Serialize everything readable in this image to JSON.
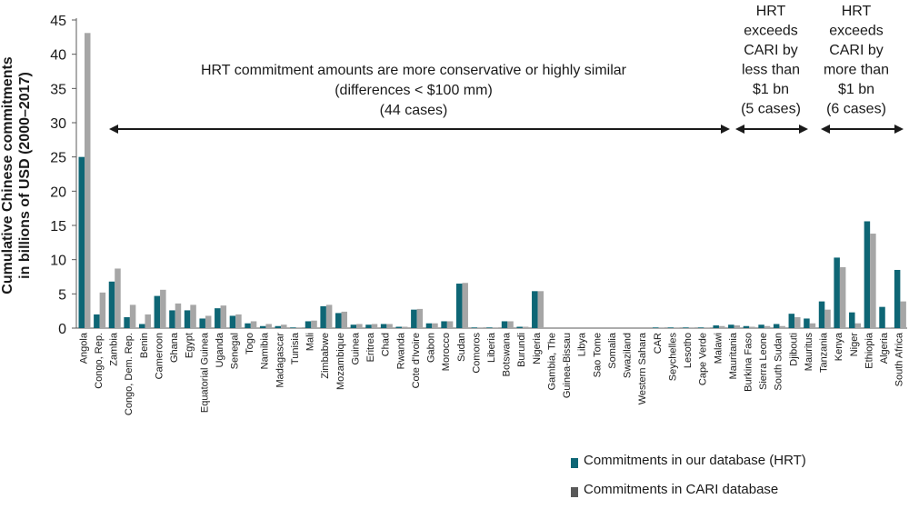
{
  "chart_data": {
    "type": "bar",
    "ylabel_lines": [
      "Cumulative Chinese commitments",
      "in billions of USD (2000–2017)"
    ],
    "ylim": [
      0,
      45
    ],
    "yticks": [
      0,
      5,
      10,
      15,
      20,
      25,
      30,
      35,
      40,
      45
    ],
    "categories": [
      "Angola",
      "Congo, Rep.",
      "Zambia",
      "Congo, Dem. Rep.",
      "Benin",
      "Cameroon",
      "Ghana",
      "Egypt",
      "Equatorial Guinea",
      "Uganda",
      "Senegal",
      "Togo",
      "Namibia",
      "Madagascar",
      "Tunisia",
      "Mali",
      "Zimbabwe",
      "Mozambique",
      "Guinea",
      "Eritrea",
      "Chad",
      "Rwanda",
      "Cote d'Ivoire",
      "Gabon",
      "Morocco",
      "Sudan",
      "Comoros",
      "Liberia",
      "Botswana",
      "Burundi",
      "Nigeria",
      "Gambia, The",
      "Guinea-Bissau",
      "Libya",
      "Sao Tome",
      "Somalia",
      "Swaziland",
      "Western Sahara",
      "CAR",
      "Seychelles",
      "Lesotho",
      "Cape Verde",
      "Malawi",
      "Mauritania",
      "Burkina Faso",
      "Sierra Leone",
      "South Sudan",
      "Djibouti",
      "Mauritus",
      "Tanzania",
      "Kenya",
      "Niger",
      "Ethiopia",
      "Algeria",
      "South Africa"
    ],
    "series": [
      {
        "name": "Commitments in our database (HRT)",
        "color": "#0e6675",
        "values": [
          25.0,
          2.0,
          6.8,
          1.6,
          0.6,
          4.7,
          2.6,
          2.6,
          1.4,
          2.9,
          1.8,
          0.7,
          0.3,
          0.3,
          0.1,
          1.0,
          3.2,
          2.2,
          0.5,
          0.5,
          0.6,
          0.2,
          2.7,
          0.7,
          1.0,
          6.5,
          0.1,
          0.1,
          1.0,
          0.2,
          5.4,
          0.0,
          0.0,
          0.0,
          0.0,
          0.0,
          0.0,
          0.0,
          0.1,
          0.1,
          0.1,
          0.1,
          0.4,
          0.5,
          0.3,
          0.5,
          0.6,
          2.1,
          1.4,
          3.9,
          10.3,
          2.3,
          15.6,
          3.1,
          8.5
        ]
      },
      {
        "name": "Commitments in CARI database",
        "color": "#a6a6a6",
        "values": [
          43.1,
          5.2,
          8.7,
          3.4,
          2.0,
          5.6,
          3.6,
          3.4,
          1.8,
          3.3,
          2.0,
          1.0,
          0.6,
          0.5,
          0.1,
          1.1,
          3.4,
          2.4,
          0.6,
          0.6,
          0.6,
          0.2,
          2.8,
          0.7,
          1.0,
          6.6,
          0.1,
          0.1,
          1.0,
          0.2,
          5.4,
          0.0,
          0.0,
          0.0,
          0.0,
          0.0,
          0.0,
          0.0,
          0.1,
          0.1,
          0.1,
          0.1,
          0.3,
          0.4,
          0.2,
          0.3,
          0.3,
          1.6,
          0.7,
          2.7,
          8.9,
          0.7,
          13.8,
          0.1,
          3.9
        ]
      }
    ],
    "annotations": [
      {
        "lines": [
          "HRT commitment amounts are more conservative or highly similar",
          "(differences < $100 mm)",
          "(44 cases)"
        ]
      },
      {
        "lines": [
          "HRT",
          "exceeds",
          "CARI by",
          "less than",
          "$1 bn",
          "(5 cases)"
        ]
      },
      {
        "lines": [
          "HRT",
          "exceeds",
          "CARI by",
          "more than",
          "$1 bn",
          "(6 cases)"
        ]
      }
    ],
    "grid": false,
    "legend_position": "bottom-right"
  }
}
